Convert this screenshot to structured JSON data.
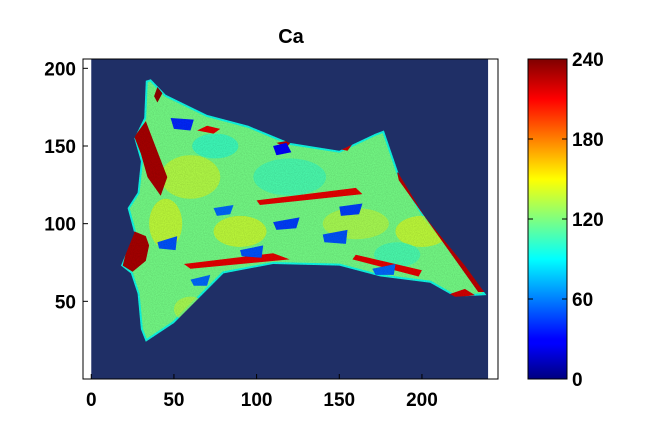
{
  "chart_data": {
    "type": "heatmap",
    "title": "Ca",
    "xlabel": "",
    "ylabel": "",
    "xlim": [
      -5,
      246
    ],
    "ylim": [
      0,
      206
    ],
    "x_ticks": [
      0,
      50,
      100,
      150,
      200
    ],
    "y_ticks": [
      50,
      100,
      150,
      200
    ],
    "colorbar": {
      "range": [
        0,
        240
      ],
      "ticks": [
        0,
        60,
        120,
        180,
        240
      ],
      "colormap": "jet"
    },
    "background_value": 0,
    "sample_outline": [
      [
        33,
        192
      ],
      [
        36,
        193
      ],
      [
        45,
        183
      ],
      [
        70,
        170
      ],
      [
        95,
        163
      ],
      [
        120,
        152
      ],
      [
        150,
        147
      ],
      [
        172,
        158
      ],
      [
        177,
        160
      ],
      [
        186,
        132
      ],
      [
        202,
        104
      ],
      [
        226,
        73
      ],
      [
        239,
        54
      ],
      [
        220,
        53
      ],
      [
        205,
        62
      ],
      [
        175,
        66
      ],
      [
        150,
        73
      ],
      [
        110,
        74
      ],
      [
        80,
        68
      ],
      [
        50,
        36
      ],
      [
        33,
        24
      ],
      [
        30,
        32
      ],
      [
        28,
        55
      ],
      [
        24,
        68
      ],
      [
        18,
        73
      ],
      [
        26,
        94
      ],
      [
        22,
        110
      ],
      [
        28,
        120
      ],
      [
        30,
        140
      ],
      [
        26,
        155
      ],
      [
        32,
        168
      ]
    ],
    "features": [
      {
        "label": "high-ca",
        "value": 230,
        "polygon": [
          [
            26,
            156
          ],
          [
            33,
            166
          ],
          [
            38,
            152
          ],
          [
            46,
            130
          ],
          [
            42,
            118
          ],
          [
            34,
            130
          ],
          [
            30,
            145
          ]
        ]
      },
      {
        "label": "high-ca",
        "value": 230,
        "polygon": [
          [
            19,
            73
          ],
          [
            25,
            69
          ],
          [
            33,
            76
          ],
          [
            35,
            86
          ],
          [
            33,
            92
          ],
          [
            26,
            95
          ],
          [
            22,
            86
          ]
        ]
      },
      {
        "label": "high-ca",
        "value": 235,
        "polygon": [
          [
            38,
            182
          ],
          [
            40,
            188
          ],
          [
            43,
            184
          ],
          [
            40,
            178
          ]
        ]
      },
      {
        "label": "high-ca",
        "value": 225,
        "polygon": [
          [
            185,
            133
          ],
          [
            190,
            131
          ],
          [
            238,
            56
          ],
          [
            234,
            56
          ],
          [
            186,
            128
          ]
        ]
      },
      {
        "label": "high-ca",
        "value": 215,
        "polygon": [
          [
            64,
            160
          ],
          [
            70,
            163
          ],
          [
            78,
            161
          ],
          [
            74,
            158
          ]
        ]
      },
      {
        "label": "high-ca",
        "value": 225,
        "polygon": [
          [
            112,
            152
          ],
          [
            122,
            154
          ],
          [
            118,
            149
          ]
        ]
      },
      {
        "label": "high-ca",
        "value": 220,
        "polygon": [
          [
            150,
            148
          ],
          [
            160,
            154
          ],
          [
            155,
            147
          ]
        ]
      },
      {
        "label": "high-ca",
        "value": 215,
        "polygon": [
          [
            100,
            115
          ],
          [
            160,
            123
          ],
          [
            164,
            119
          ],
          [
            102,
            112
          ]
        ]
      },
      {
        "label": "high-ca",
        "value": 215,
        "polygon": [
          [
            56,
            74
          ],
          [
            110,
            81
          ],
          [
            120,
            77
          ],
          [
            60,
            71
          ]
        ]
      },
      {
        "label": "high-ca",
        "value": 215,
        "polygon": [
          [
            160,
            80
          ],
          [
            200,
            70
          ],
          [
            198,
            66
          ],
          [
            158,
            77
          ]
        ]
      },
      {
        "label": "high-ca",
        "value": 220,
        "polygon": [
          [
            215,
            54
          ],
          [
            226,
            58
          ],
          [
            232,
            54
          ],
          [
            218,
            52
          ]
        ]
      },
      {
        "label": "low-ca",
        "value": 30,
        "polygon": [
          [
            110,
            150
          ],
          [
            118,
            152
          ],
          [
            121,
            146
          ],
          [
            112,
            144
          ]
        ]
      },
      {
        "label": "low-ca",
        "value": 40,
        "polygon": [
          [
            48,
            168
          ],
          [
            62,
            167
          ],
          [
            60,
            160
          ],
          [
            50,
            161
          ]
        ]
      },
      {
        "label": "low-ca",
        "value": 45,
        "polygon": [
          [
            110,
            101
          ],
          [
            126,
            104
          ],
          [
            124,
            97
          ],
          [
            112,
            96
          ]
        ]
      },
      {
        "label": "low-ca",
        "value": 45,
        "polygon": [
          [
            150,
            111
          ],
          [
            164,
            113
          ],
          [
            162,
            106
          ],
          [
            151,
            105
          ]
        ]
      },
      {
        "label": "low-ca",
        "value": 50,
        "polygon": [
          [
            140,
            93
          ],
          [
            155,
            96
          ],
          [
            154,
            87
          ],
          [
            141,
            88
          ]
        ]
      },
      {
        "label": "low-ca",
        "value": 50,
        "polygon": [
          [
            90,
            83
          ],
          [
            104,
            86
          ],
          [
            103,
            78
          ],
          [
            91,
            79
          ]
        ]
      },
      {
        "label": "low-ca",
        "value": 50,
        "polygon": [
          [
            40,
            88
          ],
          [
            52,
            92
          ],
          [
            51,
            83
          ],
          [
            41,
            84
          ]
        ]
      },
      {
        "label": "low-ca",
        "value": 55,
        "polygon": [
          [
            74,
            110
          ],
          [
            86,
            112
          ],
          [
            84,
            106
          ],
          [
            76,
            105
          ]
        ]
      },
      {
        "label": "low-ca",
        "value": 55,
        "polygon": [
          [
            196,
            130
          ],
          [
            204,
            132
          ],
          [
            203,
            126
          ],
          [
            197,
            126
          ]
        ]
      },
      {
        "label": "low-ca",
        "value": 55,
        "polygon": [
          [
            170,
            71
          ],
          [
            184,
            74
          ],
          [
            183,
            67
          ],
          [
            172,
            67
          ]
        ]
      },
      {
        "label": "low-ca",
        "value": 55,
        "polygon": [
          [
            60,
            64
          ],
          [
            72,
            67
          ],
          [
            70,
            60
          ],
          [
            62,
            60
          ]
        ]
      }
    ]
  }
}
